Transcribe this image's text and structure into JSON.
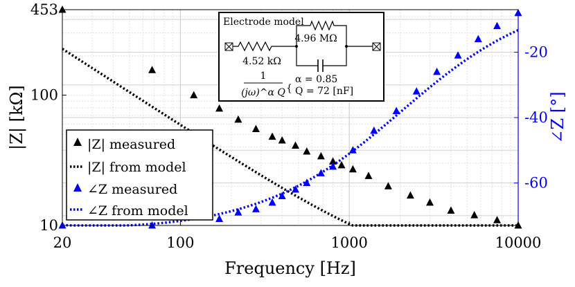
{
  "chart_data": {
    "type": "line",
    "title": "",
    "xlabel": "Frequency [Hz]",
    "ylabel_left": "|Z| [kΩ]",
    "ylabel_right": "∠Z [°]",
    "xscale": "log",
    "yscale_left": "log",
    "xlim": [
      20,
      10000
    ],
    "ylim_left": [
      10,
      453
    ],
    "ylim_right": [
      -73,
      -7
    ],
    "grid": true,
    "x_ticks": [
      {
        "value": 20,
        "label": "20"
      },
      {
        "value": 100,
        "label": "100"
      },
      {
        "value": 1000,
        "label": "1000"
      },
      {
        "value": 10000,
        "label": "10000"
      }
    ],
    "y_left_ticks": [
      {
        "value": 10,
        "label": "10"
      },
      {
        "value": 100,
        "label": "100"
      },
      {
        "value": 453,
        "label": "453"
      }
    ],
    "y_right_ticks": [
      {
        "value": -20,
        "label": "-20"
      },
      {
        "value": -40,
        "label": "-40"
      },
      {
        "value": -60,
        "label": "-60"
      }
    ],
    "model": {
      "Rs_kOhm": 4.52,
      "Rp_kOhm": 4960,
      "alpha": 0.85,
      "Q_nF": 72
    },
    "series": [
      {
        "name": "|Z| measured",
        "axis": "left",
        "style": "markers",
        "marker": "triangle",
        "color": "#000000",
        "x": [
          20,
          68,
          120,
          170,
          220,
          280,
          350,
          400,
          480,
          560,
          680,
          800,
          900,
          1050,
          1300,
          1700,
          2300,
          3000,
          4000,
          5500,
          7500,
          10000
        ],
        "y": [
          453,
          156,
          100,
          79,
          65,
          55,
          48,
          45,
          41,
          37,
          34,
          31,
          29,
          27,
          24,
          20,
          17,
          15,
          13,
          12,
          11,
          10
        ]
      },
      {
        "name": "|Z| from model",
        "axis": "left",
        "style": "dotted",
        "color": "#000000"
      },
      {
        "name": "∠Z measured",
        "axis": "right",
        "style": "markers",
        "marker": "triangle",
        "color": "#0000ff",
        "x": [
          20,
          68,
          170,
          220,
          280,
          350,
          400,
          480,
          560,
          680,
          800,
          1050,
          1400,
          1900,
          2500,
          3300,
          4400,
          5800,
          7500,
          10000
        ],
        "y": [
          -73,
          -73,
          -71,
          -69,
          -68,
          -66,
          -64,
          -62,
          -60,
          -57,
          -55,
          -50,
          -44,
          -38,
          -32,
          -26,
          -21,
          -16,
          -12,
          -8
        ]
      },
      {
        "name": "∠Z from model",
        "axis": "right",
        "style": "dotted",
        "color": "#0000ff"
      }
    ],
    "legend": {
      "position": "bottom-left",
      "entries": [
        "|Z| measured",
        "|Z| from model",
        "∠Z measured",
        "∠Z from model"
      ]
    },
    "annotation": {
      "position": "top-center",
      "electrode_label": "Electrode model",
      "resistor_series_label": "4.52 kΩ",
      "resistor_parallel_label": "4.96 MΩ",
      "cpe_numerator": "1",
      "cpe_denominator": "(jω)^α Q",
      "alpha_line": "α = 0.85",
      "q_line": "Q = 72 [nF]"
    }
  }
}
